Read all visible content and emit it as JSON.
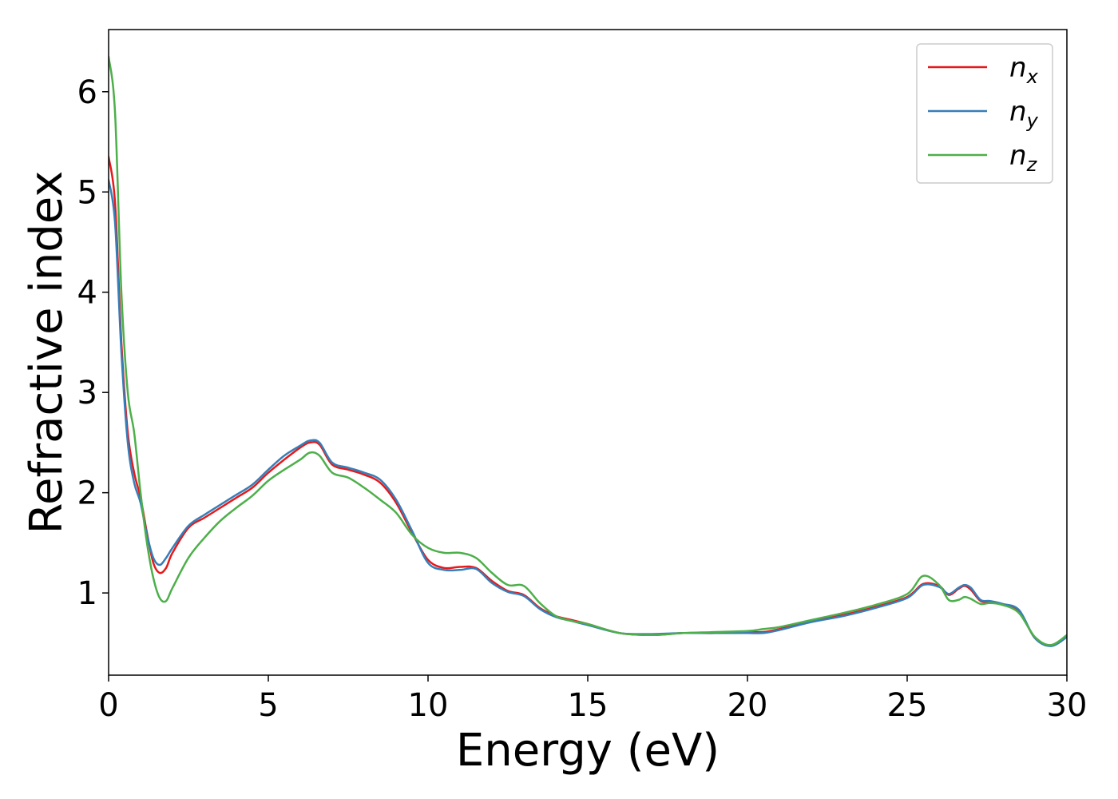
{
  "chart_data": {
    "type": "line",
    "xlabel": "Energy (eV)",
    "ylabel": "Refractive index",
    "xlim": [
      0,
      30
    ],
    "ylim": [
      0.18,
      6.62
    ],
    "xticks": [
      "0",
      "5",
      "10",
      "15",
      "20",
      "25",
      "30"
    ],
    "yticks": [
      "1",
      "2",
      "3",
      "4",
      "5",
      "6"
    ],
    "grid": false,
    "legend_position": "top-right",
    "series": [
      {
        "name": "n",
        "subscript": "x",
        "color": "#e41a1c",
        "x": [
          0,
          0.2,
          0.4,
          0.6,
          0.8,
          1.0,
          1.2,
          1.4,
          1.6,
          1.8,
          2.0,
          2.5,
          3.0,
          3.5,
          4.0,
          4.5,
          5.0,
          5.5,
          6.0,
          6.3,
          6.6,
          7.0,
          7.5,
          8.0,
          8.5,
          9.0,
          9.5,
          10.0,
          10.5,
          11.0,
          11.5,
          12.0,
          12.5,
          13.0,
          13.5,
          14.0,
          14.5,
          15.0,
          16.0,
          17.0,
          18.0,
          19.0,
          20.0,
          20.5,
          21.0,
          22.0,
          23.0,
          24.0,
          25.0,
          25.5,
          26.0,
          26.3,
          26.6,
          26.8,
          27.0,
          27.3,
          27.6,
          28.0,
          28.5,
          29.0,
          29.5,
          30.0
        ],
        "y": [
          5.35,
          4.9,
          3.5,
          2.6,
          2.2,
          1.95,
          1.6,
          1.3,
          1.2,
          1.25,
          1.4,
          1.65,
          1.75,
          1.85,
          1.95,
          2.05,
          2.2,
          2.33,
          2.45,
          2.5,
          2.48,
          2.28,
          2.23,
          2.18,
          2.1,
          1.9,
          1.6,
          1.33,
          1.25,
          1.26,
          1.25,
          1.12,
          1.02,
          0.98,
          0.85,
          0.77,
          0.73,
          0.69,
          0.6,
          0.58,
          0.6,
          0.6,
          0.61,
          0.61,
          0.64,
          0.72,
          0.78,
          0.86,
          0.96,
          1.09,
          1.07,
          0.98,
          1.04,
          1.07,
          1.03,
          0.92,
          0.91,
          0.88,
          0.82,
          0.55,
          0.48,
          0.57
        ]
      },
      {
        "name": "n",
        "subscript": "y",
        "color": "#377eb8",
        "x": [
          0,
          0.2,
          0.4,
          0.6,
          0.8,
          1.0,
          1.2,
          1.4,
          1.6,
          1.8,
          2.0,
          2.5,
          3.0,
          3.5,
          4.0,
          4.5,
          5.0,
          5.5,
          6.0,
          6.3,
          6.6,
          7.0,
          7.5,
          8.0,
          8.5,
          9.0,
          9.5,
          10.0,
          10.5,
          11.0,
          11.5,
          12.0,
          12.5,
          13.0,
          13.5,
          14.0,
          14.5,
          15.0,
          16.0,
          17.0,
          18.0,
          19.0,
          20.0,
          20.5,
          21.0,
          22.0,
          23.0,
          24.0,
          25.0,
          25.5,
          26.0,
          26.3,
          26.6,
          26.8,
          27.0,
          27.3,
          27.6,
          28.0,
          28.5,
          29.0,
          29.5,
          30.0
        ],
        "y": [
          5.12,
          4.7,
          3.4,
          2.5,
          2.1,
          1.9,
          1.58,
          1.35,
          1.28,
          1.35,
          1.45,
          1.67,
          1.78,
          1.88,
          1.98,
          2.08,
          2.23,
          2.37,
          2.47,
          2.52,
          2.5,
          2.3,
          2.25,
          2.2,
          2.13,
          1.93,
          1.62,
          1.3,
          1.23,
          1.23,
          1.24,
          1.1,
          1.01,
          0.97,
          0.84,
          0.76,
          0.72,
          0.68,
          0.6,
          0.59,
          0.6,
          0.6,
          0.6,
          0.6,
          0.63,
          0.71,
          0.77,
          0.85,
          0.95,
          1.08,
          1.06,
          0.99,
          1.05,
          1.08,
          1.05,
          0.93,
          0.92,
          0.89,
          0.83,
          0.55,
          0.47,
          0.56
        ]
      },
      {
        "name": "n",
        "subscript": "z",
        "color": "#4daf4a",
        "x": [
          0,
          0.2,
          0.4,
          0.6,
          0.8,
          1.0,
          1.2,
          1.4,
          1.6,
          1.8,
          2.0,
          2.5,
          3.0,
          3.5,
          4.0,
          4.5,
          5.0,
          5.5,
          6.0,
          6.3,
          6.6,
          7.0,
          7.5,
          8.0,
          8.5,
          9.0,
          9.5,
          10.0,
          10.5,
          11.0,
          11.5,
          12.0,
          12.5,
          13.0,
          13.5,
          14.0,
          14.5,
          15.0,
          16.0,
          17.0,
          18.0,
          19.0,
          20.0,
          20.5,
          21.0,
          22.0,
          23.0,
          24.0,
          25.0,
          25.5,
          26.0,
          26.3,
          26.6,
          26.8,
          27.0,
          27.3,
          27.6,
          28.0,
          28.5,
          29.0,
          29.5,
          30.0
        ],
        "y": [
          6.35,
          5.8,
          4.0,
          3.0,
          2.6,
          2.0,
          1.5,
          1.15,
          0.95,
          0.92,
          1.05,
          1.35,
          1.55,
          1.72,
          1.85,
          1.97,
          2.12,
          2.23,
          2.33,
          2.4,
          2.37,
          2.2,
          2.15,
          2.05,
          1.93,
          1.8,
          1.58,
          1.45,
          1.4,
          1.4,
          1.35,
          1.2,
          1.08,
          1.07,
          0.9,
          0.77,
          0.72,
          0.69,
          0.6,
          0.58,
          0.6,
          0.61,
          0.62,
          0.64,
          0.66,
          0.73,
          0.8,
          0.88,
          0.99,
          1.17,
          1.08,
          0.93,
          0.93,
          0.96,
          0.94,
          0.89,
          0.9,
          0.88,
          0.8,
          0.56,
          0.48,
          0.58
        ]
      }
    ]
  }
}
